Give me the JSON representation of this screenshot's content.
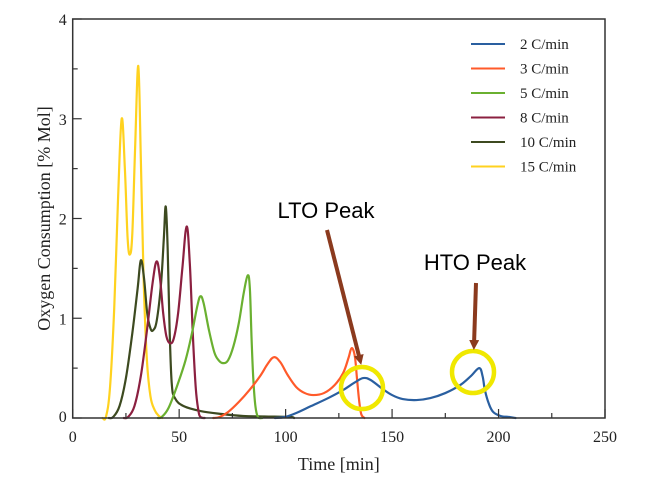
{
  "chart_data": {
    "type": "line",
    "title": "",
    "xlabel": "Time [min]",
    "ylabel": "Oxygen Consumption [% Mol]",
    "xlim": [
      0,
      250
    ],
    "ylim": [
      0,
      4
    ],
    "xticks": [
      0,
      50,
      100,
      150,
      200,
      250
    ],
    "xticks_minor": [
      25,
      75,
      125,
      175,
      225
    ],
    "yticks": [
      0,
      1,
      2,
      3,
      4
    ],
    "yticks_minor": [
      0.5,
      1.5,
      2.5,
      3.5
    ],
    "grid": false,
    "legend_position": "top-right",
    "series": [
      {
        "name": "2 C/min",
        "color": "#2a5fa0",
        "points": [
          [
            95,
            0
          ],
          [
            99.7,
            0.01
          ],
          [
            105,
            0.05
          ],
          [
            112,
            0.12
          ],
          [
            120,
            0.2
          ],
          [
            127,
            0.28
          ],
          [
            132,
            0.35
          ],
          [
            136.4,
            0.4
          ],
          [
            140,
            0.38
          ],
          [
            145,
            0.3
          ],
          [
            150,
            0.23
          ],
          [
            155,
            0.19
          ],
          [
            161.5,
            0.18
          ],
          [
            168,
            0.2
          ],
          [
            175,
            0.25
          ],
          [
            182,
            0.33
          ],
          [
            187,
            0.42
          ],
          [
            190.9,
            0.5
          ],
          [
            192.5,
            0.42
          ],
          [
            193.6,
            0.28
          ],
          [
            195.5,
            0.14
          ],
          [
            197.5,
            0.06
          ],
          [
            201,
            0.02
          ],
          [
            205,
            0.01
          ],
          [
            208,
            0
          ]
        ]
      },
      {
        "name": "3 C/min",
        "color": "#ff5a2a",
        "points": [
          [
            66,
            0
          ],
          [
            69,
            0.01
          ],
          [
            73,
            0.06
          ],
          [
            78,
            0.16
          ],
          [
            83,
            0.28
          ],
          [
            88,
            0.42
          ],
          [
            91.5,
            0.54
          ],
          [
            94.5,
            0.61
          ],
          [
            97.5,
            0.56
          ],
          [
            101,
            0.43
          ],
          [
            105,
            0.31
          ],
          [
            109,
            0.25
          ],
          [
            113,
            0.23
          ],
          [
            118,
            0.25
          ],
          [
            123,
            0.33
          ],
          [
            127,
            0.45
          ],
          [
            129.5,
            0.6
          ],
          [
            131,
            0.7
          ],
          [
            132.5,
            0.62
          ],
          [
            133.5,
            0.4
          ],
          [
            134.5,
            0.18
          ],
          [
            135.5,
            0.04
          ],
          [
            137,
            0
          ]
        ]
      },
      {
        "name": "5 C/min",
        "color": "#6ab030",
        "points": [
          [
            40,
            0
          ],
          [
            41.8,
            0.01
          ],
          [
            45,
            0.1
          ],
          [
            49,
            0.32
          ],
          [
            53,
            0.58
          ],
          [
            56,
            0.85
          ],
          [
            58.5,
            1.12
          ],
          [
            60,
            1.22
          ],
          [
            61.5,
            1.15
          ],
          [
            64,
            0.88
          ],
          [
            66.5,
            0.66
          ],
          [
            68.5,
            0.58
          ],
          [
            70.7,
            0.55
          ],
          [
            73,
            0.58
          ],
          [
            75.5,
            0.72
          ],
          [
            78,
            0.95
          ],
          [
            80.3,
            1.25
          ],
          [
            82.2,
            1.43
          ],
          [
            83.2,
            1.3
          ],
          [
            84,
            0.8
          ],
          [
            84.8,
            0.4
          ],
          [
            85.8,
            0.12
          ],
          [
            87,
            0.01
          ],
          [
            89,
            0
          ]
        ]
      },
      {
        "name": "8 C/min",
        "color": "#8b2040",
        "points": [
          [
            24,
            0
          ],
          [
            26,
            0.01
          ],
          [
            29,
            0.12
          ],
          [
            32,
            0.42
          ],
          [
            35,
            0.9
          ],
          [
            37.5,
            1.35
          ],
          [
            39.4,
            1.57
          ],
          [
            41,
            1.4
          ],
          [
            42.5,
            1.05
          ],
          [
            44,
            0.82
          ],
          [
            45.7,
            0.75
          ],
          [
            47.5,
            0.8
          ],
          [
            49.5,
            1.05
          ],
          [
            51.5,
            1.5
          ],
          [
            53.5,
            1.92
          ],
          [
            55,
            1.55
          ],
          [
            56.5,
            0.8
          ],
          [
            57.8,
            0.3
          ],
          [
            59,
            0.08
          ],
          [
            60,
            0.01
          ],
          [
            62,
            0
          ]
        ]
      },
      {
        "name": "10 C/min",
        "color": "#3d4a20",
        "points": [
          [
            17,
            0
          ],
          [
            19,
            0.01
          ],
          [
            22,
            0.12
          ],
          [
            25,
            0.4
          ],
          [
            28,
            0.85
          ],
          [
            30.5,
            1.3
          ],
          [
            32,
            1.58
          ],
          [
            33.5,
            1.4
          ],
          [
            35,
            1.05
          ],
          [
            36.5,
            0.9
          ],
          [
            37.8,
            0.88
          ],
          [
            39.5,
            0.98
          ],
          [
            41.5,
            1.35
          ],
          [
            42.8,
            1.8
          ],
          [
            43.7,
            2.12
          ],
          [
            44.6,
            1.7
          ],
          [
            45.5,
            0.9
          ],
          [
            46.5,
            0.35
          ],
          [
            48,
            0.2
          ],
          [
            52,
            0.12
          ],
          [
            60,
            0.07
          ],
          [
            70,
            0.04
          ],
          [
            80,
            0.02
          ],
          [
            90,
            0.015
          ],
          [
            102,
            0.01
          ],
          [
            104,
            0
          ]
        ]
      },
      {
        "name": "15 C/min",
        "color": "#ffd21f",
        "points": [
          [
            14,
            0
          ],
          [
            15.6,
            0.01
          ],
          [
            17.5,
            0.3
          ],
          [
            19.5,
            1.1
          ],
          [
            21.3,
            2.2
          ],
          [
            23,
            3.0
          ],
          [
            24.5,
            2.5
          ],
          [
            25.8,
            1.8
          ],
          [
            26.9,
            1.64
          ],
          [
            28,
            1.85
          ],
          [
            29.3,
            2.7
          ],
          [
            30.8,
            3.53
          ],
          [
            32,
            2.6
          ],
          [
            33.3,
            1.4
          ],
          [
            34.8,
            0.6
          ],
          [
            36.5,
            0.22
          ],
          [
            38.5,
            0.08
          ],
          [
            40.5,
            0.02
          ],
          [
            42,
            0
          ]
        ]
      }
    ],
    "annotations": [
      {
        "label": "LTO Peak",
        "color": "#8b3a1e",
        "circle_color": "#f0e800",
        "target": [
          136.4,
          0.4
        ],
        "arrow_from_text": true
      },
      {
        "label": "HTO Peak",
        "color": "#8b3a1e",
        "circle_color": "#f0e800",
        "target": [
          190.9,
          0.5
        ],
        "arrow_from_text": true
      }
    ]
  }
}
